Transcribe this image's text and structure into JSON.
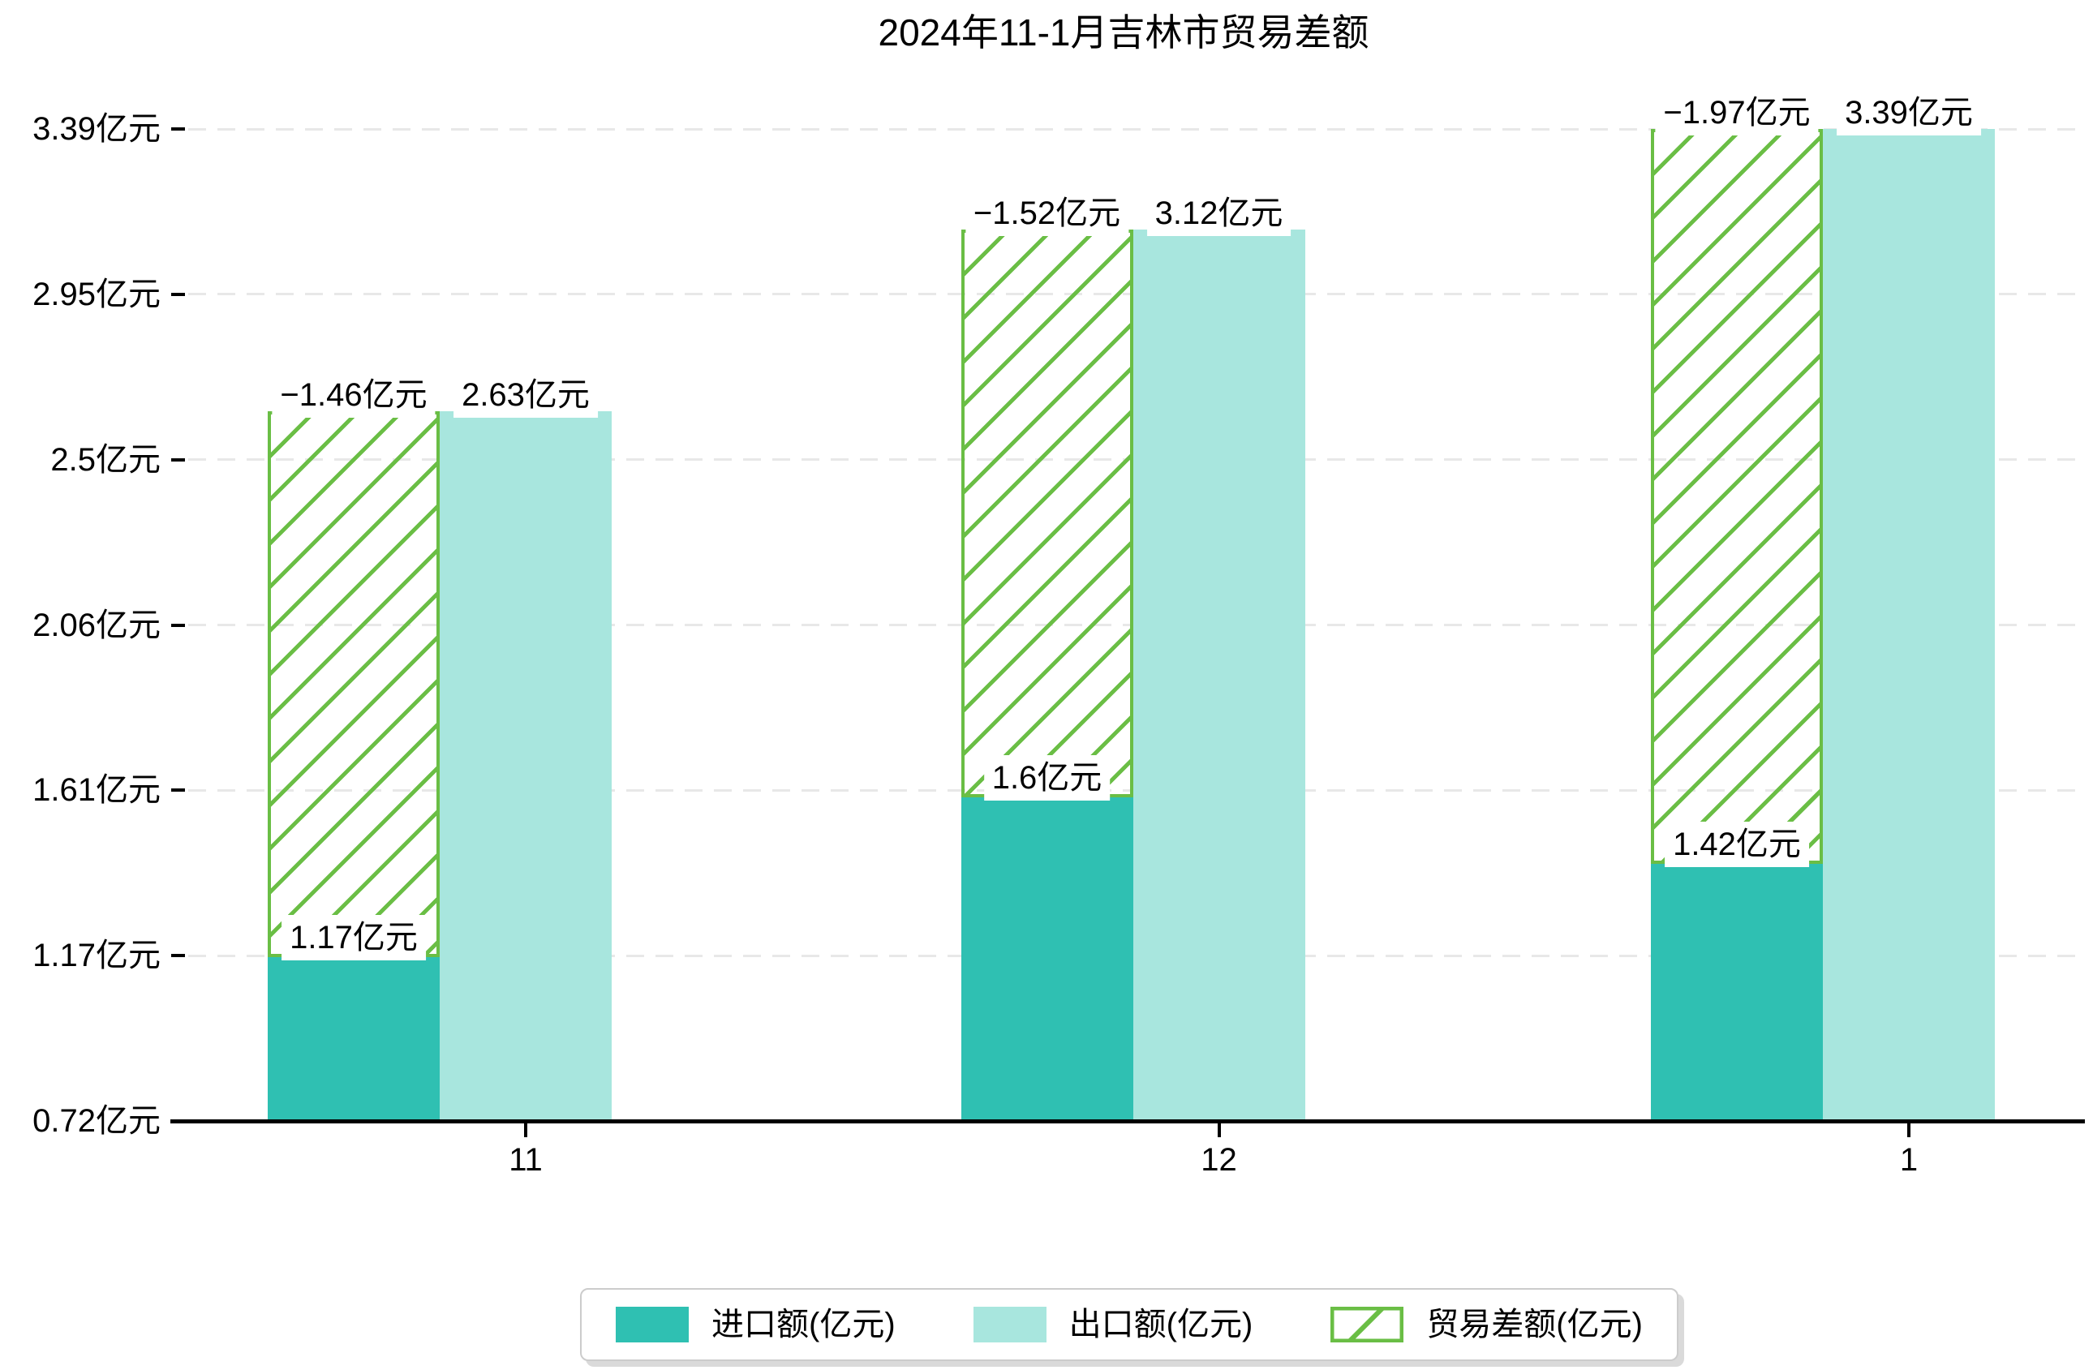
{
  "chart_data": {
    "type": "bar",
    "title": "2024年11-1月吉林市贸易差额",
    "categories": [
      "11",
      "12",
      "1"
    ],
    "unit": "亿元",
    "series": [
      {
        "name": "进口额(亿元)",
        "values": [
          1.17,
          1.6,
          1.42
        ],
        "value_labels": [
          "1.17亿元",
          "1.6亿元",
          "1.42亿元"
        ],
        "color": "#2fc0b2",
        "pattern": "solid"
      },
      {
        "name": "出口额(亿元)",
        "values": [
          2.63,
          3.12,
          3.39
        ],
        "value_labels": [
          "2.63亿元",
          "3.12亿元",
          "3.39亿元"
        ],
        "color": "#a8e6de",
        "pattern": "solid"
      },
      {
        "name": "贸易差额(亿元)",
        "values": [
          -1.46,
          -1.52,
          -1.97
        ],
        "value_labels": [
          "−1.46亿元",
          "−1.52亿元",
          "−1.97亿元"
        ],
        "color": "#6abe45",
        "pattern": "hatched-diagonal",
        "render_hint": "hollow hatched bar stacked on top of import bar, spanning up to export value"
      }
    ],
    "y_axis": {
      "tick_labels": [
        "0.72亿元",
        "1.17亿元",
        "1.61亿元",
        "2.06亿元",
        "2.5亿元",
        "2.95亿元",
        "3.39亿元"
      ],
      "min": 0.72,
      "max": 3.39
    },
    "x_axis": {
      "tick_labels": [
        "11",
        "12",
        "1"
      ]
    },
    "grid": {
      "axis": "y",
      "line_style": "dashed",
      "color": "#e8e8e8"
    },
    "legend": {
      "position": "bottom-center"
    },
    "ylim": [
      0.72,
      3.39
    ]
  }
}
